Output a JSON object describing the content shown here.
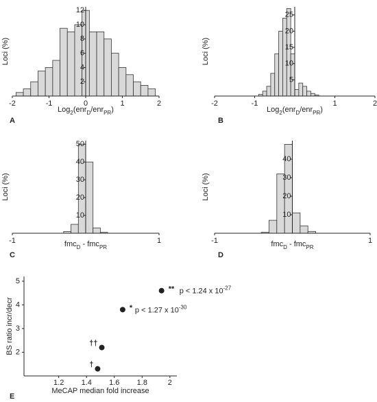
{
  "chart_data": [
    {
      "type": "histogram",
      "panel": "A",
      "y_label": "Loci (%)",
      "x_label": {
        "parts": [
          {
            "text": "Log"
          },
          {
            "text": "2",
            "sub": true
          },
          {
            "text": "(enr"
          },
          {
            "text": "D",
            "sub": true
          },
          {
            "text": "/enr"
          },
          {
            "text": "PR",
            "sub": true
          },
          {
            "text": ")"
          }
        ]
      },
      "bins": [
        -1.9,
        -1.7,
        -1.5,
        -1.3,
        -1.1,
        -0.9,
        -0.7,
        -0.5,
        -0.3,
        -0.1,
        0.1,
        0.3,
        0.5,
        0.7,
        0.9,
        1.1,
        1.3,
        1.5,
        1.7,
        1.9
      ],
      "values": [
        0.5,
        1,
        2,
        3.5,
        4,
        5,
        9.5,
        9,
        10,
        12,
        9,
        9,
        8,
        6,
        4,
        3,
        2,
        1.5,
        1
      ],
      "color": "#d9d9d9",
      "xlim": [
        -2,
        2
      ],
      "ylim": [
        0,
        12.5
      ],
      "xticks": [
        -2,
        -1,
        0,
        1,
        2
      ],
      "yticks": [
        2,
        4,
        6,
        8,
        10,
        12
      ],
      "grid": false
    },
    {
      "type": "histogram",
      "panel": "B",
      "y_label": "Loci (%)",
      "x_label": {
        "parts": [
          {
            "text": "Log"
          },
          {
            "text": "2",
            "sub": true
          },
          {
            "text": "(enr"
          },
          {
            "text": "D",
            "sub": true
          },
          {
            "text": "/enr"
          },
          {
            "text": "PR",
            "sub": true
          },
          {
            "text": ")"
          }
        ]
      },
      "bins": [
        -0.9,
        -0.8,
        -0.7,
        -0.6,
        -0.5,
        -0.4,
        -0.3,
        -0.2,
        -0.1,
        0,
        0.1,
        0.2,
        0.3,
        0.4,
        0.5,
        0.6
      ],
      "values": [
        0.5,
        1.5,
        3,
        7,
        13,
        20,
        24,
        27,
        13,
        2,
        4,
        3,
        1.5,
        0.8,
        0.3
      ],
      "color": "#d9d9d9",
      "xlim": [
        -2,
        2
      ],
      "ylim": [
        0,
        27.5
      ],
      "xticks": [
        -2,
        -1,
        1,
        2
      ],
      "yticks": [
        5,
        10,
        15,
        20,
        25
      ],
      "grid": false
    },
    {
      "type": "histogram",
      "panel": "C",
      "y_label": "Loci (%)",
      "x_label": {
        "parts": [
          {
            "text": "fmc"
          },
          {
            "text": "D",
            "sub": true
          },
          {
            "text": " - fmc"
          },
          {
            "text": "PR",
            "sub": true
          }
        ]
      },
      "bins": [
        -0.3,
        -0.2,
        -0.1,
        0,
        0.1,
        0.2,
        0.3
      ],
      "values": [
        1,
        5,
        50,
        40,
        3,
        0.5
      ],
      "color": "#d9d9d9",
      "xlim": [
        -1,
        1
      ],
      "ylim": [
        0,
        52
      ],
      "xticks": [
        -1,
        1
      ],
      "yticks": [
        10,
        20,
        30,
        40,
        50
      ],
      "grid": false
    },
    {
      "type": "histogram",
      "panel": "D",
      "y_label": "Loci (%)",
      "x_label": {
        "parts": [
          {
            "text": "fmc"
          },
          {
            "text": "D",
            "sub": true
          },
          {
            "text": " - fmc"
          },
          {
            "text": "PR",
            "sub": true
          }
        ]
      },
      "bins": [
        -0.4,
        -0.3,
        -0.2,
        -0.1,
        0,
        0.1,
        0.2,
        0.3
      ],
      "values": [
        0.5,
        7,
        32,
        48,
        11,
        4,
        1
      ],
      "color": "#d9d9d9",
      "xlim": [
        -1,
        1
      ],
      "ylim": [
        0,
        50
      ],
      "xticks": [
        -1,
        1
      ],
      "yticks": [
        10,
        20,
        30,
        40
      ],
      "grid": false
    },
    {
      "type": "scatter",
      "panel": "E",
      "y_label": "BS ratio incr/decr",
      "x_label": "MeCAP median fold increase",
      "x": [
        1.48,
        1.51,
        1.66,
        1.94
      ],
      "values": [
        1.3,
        2.2,
        3.8,
        4.6
      ],
      "color": "#222222",
      "point_labels": [
        "†",
        "††",
        "*",
        "**"
      ],
      "point_notes": [
        null,
        null,
        {
          "text": "p < 1.27 x 10",
          "exponent": "-30"
        },
        {
          "text": "p < 1.24 x 10",
          "exponent": "-27"
        }
      ],
      "xlim": [
        0.95,
        2.05
      ],
      "ylim": [
        1,
        5.2
      ],
      "xticks": [
        1.2,
        1.4,
        1.6,
        1.8,
        2
      ],
      "yticks": [
        2,
        3,
        4,
        5
      ],
      "grid": false
    }
  ]
}
